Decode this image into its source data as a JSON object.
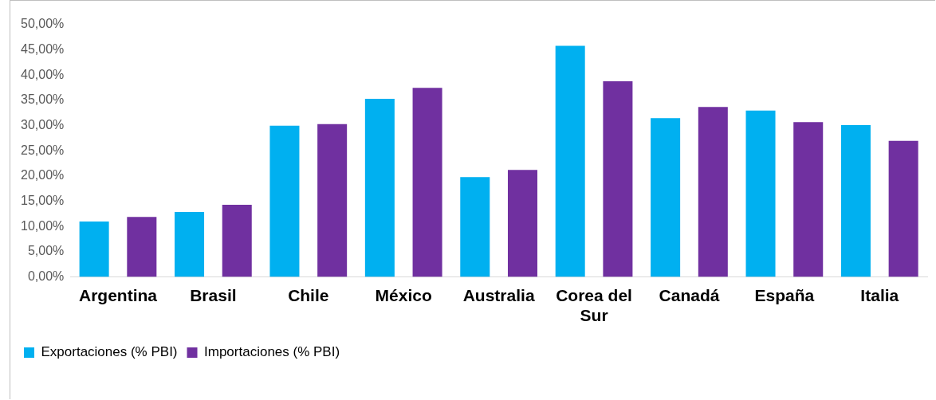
{
  "chart_data": {
    "type": "bar",
    "categories": [
      "Argentina",
      "Brasil",
      "Chile",
      "México",
      "Australia",
      "Corea del Sur",
      "Canadá",
      "España",
      "Italia"
    ],
    "series": [
      {
        "name": "Exportaciones (% PBI)",
        "color": "#00b0f0",
        "values": [
          11.0,
          12.9,
          30.0,
          35.3,
          19.8,
          45.8,
          31.5,
          33.0,
          30.1
        ]
      },
      {
        "name": "Importaciones (% PBI)",
        "color": "#7030a0",
        "values": [
          11.9,
          14.3,
          30.3,
          37.5,
          21.2,
          38.8,
          33.7,
          30.7,
          27.0
        ]
      }
    ],
    "ylim": [
      0,
      50
    ],
    "yticks": [
      {
        "value": 0,
        "label": "0,00%"
      },
      {
        "value": 5,
        "label": "5,00%"
      },
      {
        "value": 10,
        "label": "10,00%"
      },
      {
        "value": 15,
        "label": "15,00%"
      },
      {
        "value": 20,
        "label": "20,00%"
      },
      {
        "value": 25,
        "label": "25,00%"
      },
      {
        "value": 30,
        "label": "30,00%"
      },
      {
        "value": 35,
        "label": "35,00%"
      },
      {
        "value": 40,
        "label": "40,00%"
      },
      {
        "value": 45,
        "label": "45,00%"
      },
      {
        "value": 50,
        "label": "50,00%"
      }
    ],
    "grid": false,
    "legend": "bottom left"
  }
}
